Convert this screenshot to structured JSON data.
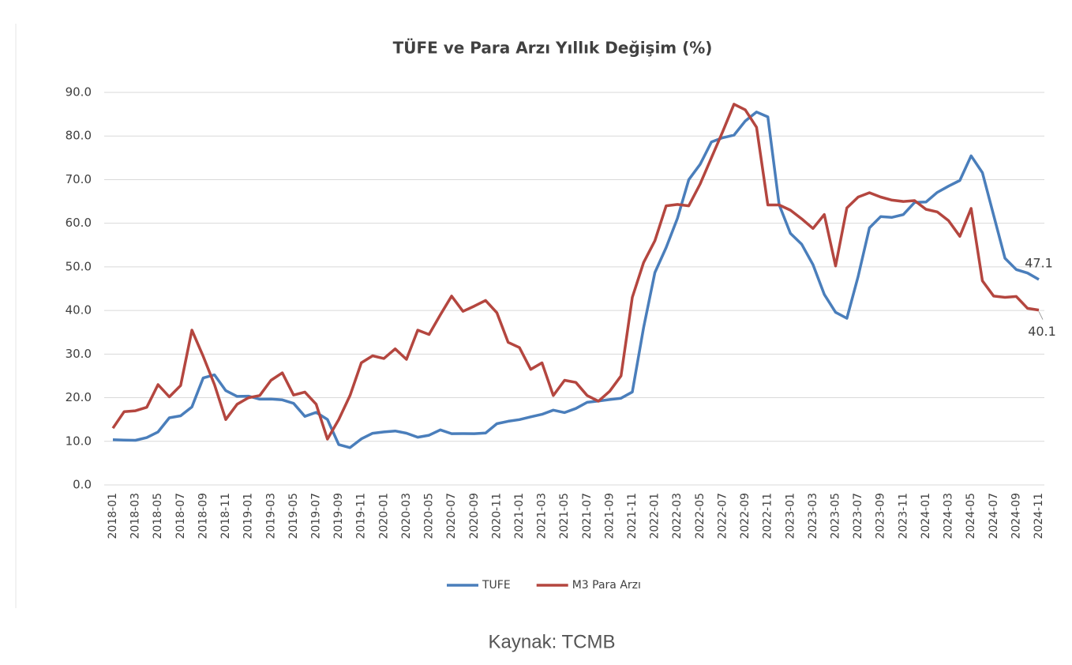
{
  "chart_data": {
    "type": "line",
    "title": "TÜFE ve Para Arzı Yıllık Değişim (%)",
    "categories": [
      "2018-01",
      null,
      "2018-03",
      null,
      "2018-05",
      null,
      "2018-07",
      null,
      "2018-09",
      null,
      "2018-11",
      null,
      "2019-01",
      null,
      "2019-03",
      null,
      "2019-05",
      null,
      "2019-07",
      null,
      "2019-09",
      null,
      "2019-11",
      null,
      "2020-01",
      null,
      "2020-03",
      null,
      "2020-05",
      null,
      "2020-07",
      null,
      "2020-09",
      null,
      "2020-11",
      null,
      "2021-01",
      null,
      "2021-03",
      null,
      "2021-05",
      null,
      "2021-07",
      null,
      "2021-09",
      null,
      "2021-11",
      null,
      "2022-01",
      null,
      "2022-03",
      null,
      "2022-05",
      null,
      "2022-07",
      null,
      "2022-09",
      null,
      "2022-11",
      null,
      "2023-01",
      null,
      "2023-03",
      null,
      "2023-05",
      null,
      "2023-07",
      null,
      "2023-09",
      null,
      "2023-11",
      null,
      "2024-01",
      null,
      "2024-03",
      null,
      "2024-05",
      null,
      "2024-07",
      null,
      "2024-09",
      null,
      "2024-11"
    ],
    "series": [
      {
        "name": "TUFE",
        "color": "#4a7ebb",
        "values": [
          10.35,
          10.26,
          10.23,
          10.85,
          12.15,
          15.39,
          15.85,
          17.9,
          24.52,
          25.24,
          21.62,
          20.3,
          20.35,
          19.67,
          19.71,
          19.5,
          18.71,
          15.72,
          16.65,
          15.01,
          9.26,
          8.55,
          10.56,
          11.84,
          12.15,
          12.37,
          11.86,
          10.94,
          11.39,
          12.62,
          11.76,
          11.77,
          11.75,
          11.89,
          14.03,
          14.6,
          14.97,
          15.61,
          16.19,
          17.14,
          16.59,
          17.53,
          18.95,
          19.25,
          19.58,
          19.89,
          21.31,
          36.08,
          48.69,
          54.44,
          61.14,
          69.97,
          73.5,
          78.62,
          79.6,
          80.21,
          83.45,
          85.51,
          84.39,
          64.27,
          57.68,
          55.18,
          50.51,
          43.68,
          39.59,
          38.21,
          47.83,
          58.94,
          61.53,
          61.36,
          61.98,
          64.77,
          64.86,
          67.07,
          68.5,
          69.8,
          75.45,
          71.6,
          61.78,
          51.97,
          49.38,
          48.58,
          47.1
        ],
        "value_labels": [
          null,
          null,
          null,
          null,
          null,
          null,
          null,
          null,
          null,
          null,
          null,
          null,
          null,
          null,
          null,
          null,
          null,
          null,
          null,
          null,
          null,
          null,
          null,
          null,
          null,
          null,
          null,
          null,
          null,
          null,
          null,
          null,
          null,
          null,
          null,
          null,
          null,
          null,
          null,
          null,
          null,
          null,
          null,
          null,
          null,
          null,
          null,
          null,
          null,
          null,
          null,
          null,
          null,
          null,
          null,
          null,
          null,
          null,
          null,
          null,
          null,
          null,
          null,
          null,
          null,
          null,
          null,
          null,
          null,
          null,
          null,
          null,
          null,
          null,
          null,
          null,
          null,
          null,
          null,
          null,
          null,
          null,
          "47.1"
        ]
      },
      {
        "name": "M3 Para Arzı",
        "color": "#b4463f",
        "values": [
          13,
          16.8,
          17,
          17.8,
          23,
          20.2,
          22.8,
          35.5,
          29.5,
          23,
          15,
          18.5,
          20,
          20.5,
          24,
          25.7,
          20.6,
          21.3,
          18.5,
          10.5,
          15,
          20.5,
          28,
          29.6,
          29,
          31.2,
          28.8,
          35.5,
          34.5,
          39,
          43.3,
          39.8,
          41,
          42.3,
          39.5,
          32.7,
          31.5,
          26.5,
          28,
          20.5,
          24,
          23.5,
          20.5,
          19.2,
          21.5,
          25,
          43,
          51,
          56,
          64,
          64.3,
          64,
          69,
          75,
          81,
          87.3,
          86,
          82,
          64.2,
          64.2,
          63,
          61,
          58.8,
          62,
          50.2,
          63.5,
          66,
          67,
          66,
          65.3,
          65,
          65.2,
          63.2,
          62.6,
          60.6,
          57,
          63.4,
          46.8,
          43.3,
          43,
          43.2,
          40.5,
          40.1
        ],
        "value_labels": [
          null,
          null,
          null,
          null,
          null,
          null,
          null,
          null,
          null,
          null,
          null,
          null,
          null,
          null,
          null,
          null,
          null,
          null,
          null,
          null,
          null,
          null,
          null,
          null,
          null,
          null,
          null,
          null,
          null,
          null,
          null,
          null,
          null,
          null,
          null,
          null,
          null,
          null,
          null,
          null,
          null,
          null,
          null,
          null,
          null,
          null,
          null,
          null,
          null,
          null,
          null,
          null,
          null,
          null,
          null,
          null,
          null,
          null,
          null,
          null,
          null,
          null,
          null,
          null,
          null,
          null,
          null,
          null,
          null,
          null,
          null,
          null,
          null,
          null,
          null,
          null,
          null,
          null,
          null,
          null,
          null,
          null,
          "40.1"
        ]
      }
    ],
    "ylim": [
      0,
      90
    ],
    "yticks": [
      {
        "value": 0,
        "label": "0.0"
      },
      {
        "value": 10,
        "label": "10.0"
      },
      {
        "value": 20,
        "label": "20.0"
      },
      {
        "value": 30,
        "label": "30.0"
      },
      {
        "value": 40,
        "label": "40.0"
      },
      {
        "value": 50,
        "label": "50.0"
      },
      {
        "value": 60,
        "label": "60.0"
      },
      {
        "value": 70,
        "label": "70.0"
      },
      {
        "value": 80,
        "label": "80.0"
      },
      {
        "value": 90,
        "label": "90.0"
      }
    ],
    "grid": true,
    "legend": "bottom",
    "source": "Kaynak: TCMB"
  }
}
